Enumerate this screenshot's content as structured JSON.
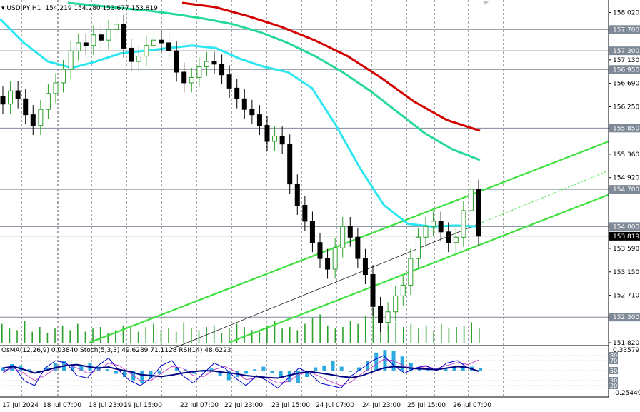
{
  "header": {
    "symbol": "USDJPY,H1",
    "ohlc": "154.219 154.280 153.677 153.819"
  },
  "indicator_header": "OsMA(12,26,9) 0.03840  Stoch(5,3,3) 49.6289 71.1128  RSI(14) 48.6223",
  "colors": {
    "bull": "#2ca02c",
    "bear": "#000000",
    "ema200": "#d40000",
    "ema144": "#26d996",
    "ema50": "#2ee6f0",
    "channel": "#3ce03c",
    "level_line": "#7f8a99",
    "volume": "#2ca02c",
    "osma": "#2aa9e0",
    "stoch_main": "#0000cc",
    "stoch_signal": "#c03cc0",
    "rsi": "#000080"
  },
  "chart_data": {
    "type": "candlestick",
    "symbol": "USDJPY",
    "timeframe": "H1",
    "ylim": [
      151.82,
      158.2
    ],
    "yticks": [
      "158.020",
      "157.700",
      "157.300",
      "157.130",
      "156.950",
      "156.690",
      "156.250",
      "155.850",
      "155.360",
      "154.920",
      "154.700",
      "154.000",
      "153.819",
      "153.590",
      "153.150",
      "152.710",
      "152.300",
      "151.820"
    ],
    "price_labels": [
      {
        "value": 157.7,
        "label": "157.700"
      },
      {
        "value": 157.3,
        "label": "157.300"
      },
      {
        "value": 156.95,
        "label": "156.950"
      },
      {
        "value": 155.85,
        "label": "155.850"
      },
      {
        "value": 154.7,
        "label": "154.700"
      },
      {
        "value": 154.0,
        "label": "154.000"
      },
      {
        "value": 153.819,
        "label": "153.819",
        "current": true
      },
      {
        "value": 152.3,
        "label": "152.300"
      }
    ],
    "levels": [
      157.7,
      157.3,
      156.95,
      155.85,
      154.7,
      154.0,
      152.3
    ],
    "xlabels": [
      "17 Jul 2024",
      "18 Jul 07:00",
      "18 Jul 23:00",
      "19 Jul 15:00",
      "22 Jul 07:00",
      "22 Jul 23:00",
      "23 Jul 15:00",
      "24 Jul 07:00",
      "24 Jul 23:00",
      "25 Jul 15:00",
      "26 Jul 07:00"
    ],
    "series_close": [
      156.3,
      156.55,
      156.4,
      156.1,
      155.9,
      156.2,
      156.5,
      156.7,
      156.95,
      157.3,
      157.45,
      157.4,
      157.6,
      157.5,
      157.7,
      157.8,
      157.35,
      157.1,
      157.2,
      157.4,
      157.5,
      157.45,
      157.3,
      156.9,
      156.7,
      156.8,
      157.0,
      157.1,
      157.05,
      156.85,
      156.6,
      156.4,
      156.2,
      156.1,
      155.9,
      155.6,
      155.7,
      155.55,
      154.8,
      154.4,
      154.1,
      153.7,
      153.4,
      153.2,
      153.6,
      154.0,
      153.8,
      153.4,
      153.1,
      152.5,
      152.2,
      152.4,
      152.7,
      152.9,
      153.4,
      153.8,
      154.0,
      154.1,
      153.9,
      153.7,
      153.8,
      154.3,
      154.7,
      153.82
    ],
    "ema50": [
      157.9,
      157.45,
      157.1,
      156.98,
      157.1,
      157.25,
      157.3,
      157.35,
      157.4,
      157.35,
      157.15,
      157.0,
      156.9,
      156.6,
      155.9,
      155.1,
      154.4,
      154.05,
      154.0,
      154.02,
      154.0
    ],
    "ema144": [
      158.2,
      158.15,
      158.1,
      158.05,
      157.98,
      157.9,
      157.8,
      157.65,
      157.45,
      157.2,
      156.9,
      156.55,
      156.15,
      155.75,
      155.45,
      155.25
    ],
    "ema200": [
      158.2,
      158.12,
      157.95,
      157.75,
      157.5,
      157.2,
      156.8,
      156.35,
      156.0,
      155.8
    ],
    "trend_channel": {
      "upper": [
        [
          0,
          151.82
        ],
        [
          1,
          155.6
        ]
      ],
      "lower": [
        [
          0,
          151.82
        ],
        [
          1,
          154.6
        ]
      ],
      "mid": [
        [
          0,
          151.7
        ],
        [
          1,
          155.05
        ]
      ]
    },
    "volume": [
      12,
      9,
      8,
      14,
      7,
      10,
      6,
      9,
      11,
      8,
      12,
      7,
      9,
      10,
      6,
      8,
      11,
      9,
      7,
      10,
      12,
      8,
      9,
      7,
      13,
      9,
      8,
      10,
      11,
      6,
      9,
      12,
      10,
      8,
      7,
      11,
      14,
      9,
      10,
      8,
      12,
      16,
      18,
      11,
      9,
      10,
      14,
      12,
      17,
      22,
      15,
      11,
      13,
      10,
      12,
      9,
      11,
      8,
      12,
      9,
      10,
      11,
      13,
      9
    ],
    "osma": [
      0.05,
      0.1,
      0.08,
      0.02,
      -0.04,
      0.05,
      0.12,
      0.15,
      0.1,
      0.08,
      0.12,
      0.06,
      0.02,
      -0.05,
      -0.1,
      -0.15,
      -0.2,
      -0.12,
      -0.05,
      0.0,
      0.04,
      0.02,
      -0.05,
      -0.02,
      0.03,
      -0.08,
      -0.15,
      -0.1,
      -0.05,
      0.02,
      0.06,
      -0.04,
      -0.12,
      -0.18,
      -0.2,
      -0.1,
      0.05,
      0.08,
      0.15,
      0.06,
      -0.02,
      0.05,
      0.15,
      0.28,
      0.32,
      0.3,
      0.22,
      0.12,
      0.06,
      0.04,
      0.02,
      0.04,
      0.06,
      0.08,
      0.06,
      0.038
    ],
    "stoch_main": [
      45,
      60,
      30,
      20,
      55,
      70,
      65,
      40,
      35,
      60,
      75,
      50,
      30,
      20,
      35,
      60,
      70,
      40,
      25,
      45,
      65,
      55,
      35,
      20,
      40,
      30,
      15,
      35,
      55,
      45,
      25,
      20,
      15,
      40,
      55,
      70,
      80,
      60,
      45,
      55,
      60,
      50,
      65,
      70,
      55,
      49.6
    ],
    "stoch_signal": [
      50,
      55,
      45,
      30,
      40,
      55,
      62,
      55,
      45,
      50,
      65,
      60,
      45,
      30,
      30,
      45,
      58,
      55,
      40,
      38,
      52,
      58,
      48,
      32,
      35,
      35,
      25,
      28,
      42,
      48,
      38,
      28,
      20,
      28,
      45,
      58,
      72,
      70,
      58,
      55,
      58,
      54,
      60,
      66,
      62,
      71.1
    ],
    "rsi": [
      55,
      58,
      52,
      45,
      50,
      56,
      60,
      62,
      58,
      55,
      57,
      52,
      48,
      42,
      40,
      38,
      41,
      45,
      48,
      50,
      49,
      46,
      44,
      40,
      38,
      36,
      35,
      40,
      45,
      48,
      45,
      42,
      38,
      36,
      40,
      48,
      55,
      58,
      56,
      54,
      53,
      52,
      55,
      58,
      56,
      48.6
    ],
    "indicator_scale": {
      "top_label": "0.33579",
      "bottom_label": "-0.25449",
      "osc_levels": [
        "80",
        "70",
        "50",
        "30",
        "20"
      ]
    }
  }
}
